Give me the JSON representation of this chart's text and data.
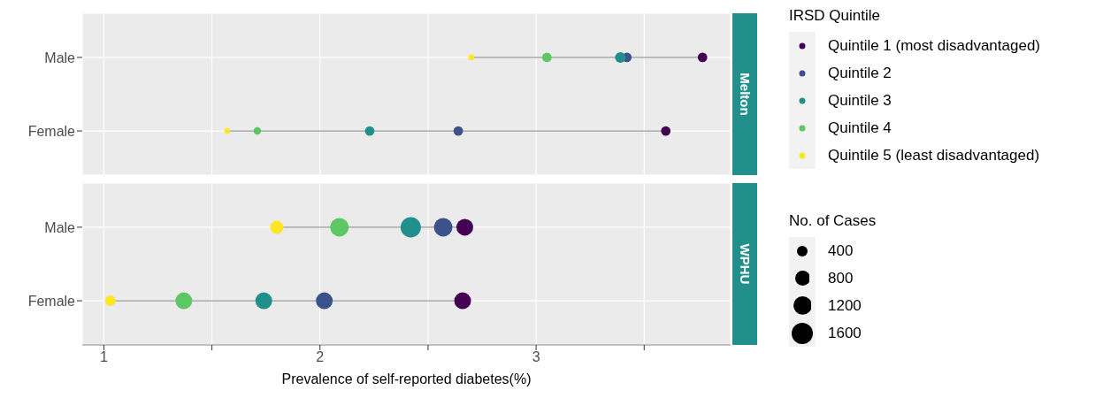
{
  "chart_data": [
    {
      "type": "bubble",
      "orientation": "horizontal",
      "title": "Melton",
      "legend_title": "IRSD Quintile",
      "legend": "right",
      "categories": [
        "Male",
        "Female"
      ],
      "xlim": [
        0.9,
        3.9
      ],
      "xticks": [
        1,
        {
          "value": 1.5,
          "label": null
        },
        2,
        {
          "value": 2.5,
          "label": null
        },
        3,
        {
          "value": 3.5,
          "label": null
        }
      ],
      "tick_labels": "y",
      "grid": true,
      "marker": "circle",
      "series": [
        {
          "name": "Quintile 1 (most disadvantaged)",
          "color": "#440154",
          "values": [
            3.77,
            3.6
          ],
          "sizes": [
            0.8,
            0.8
          ]
        },
        {
          "name": "Quintile 2",
          "color": "#3b528b",
          "values": [
            3.42,
            2.64
          ],
          "sizes": [
            0.8,
            0.8
          ]
        },
        {
          "name": "Quintile 3",
          "color": "#21908c",
          "values": [
            3.39,
            2.23
          ],
          "sizes": [
            1,
            0.8
          ]
        },
        {
          "name": "Quintile 4",
          "color": "#5dc863",
          "values": [
            3.05,
            1.71
          ],
          "sizes": [
            0.8,
            0.5
          ]
        },
        {
          "name": "Quintile 5 (least disadvantaged)",
          "color": "#fde725",
          "values": [
            2.7,
            1.57
          ],
          "sizes": [
            0.3,
            0.3
          ]
        }
      ]
    },
    {
      "type": "bubble",
      "orientation": "horizontal",
      "title": "WPHU",
      "xlabel": "Prevalence of self-reported diabetes(%)",
      "annotations": [
        "No. of Cases"
      ],
      "size_legend": [
        400,
        800,
        1200,
        1600
      ],
      "categories": [
        "Male",
        "Female"
      ],
      "xlim": [
        0.9,
        3.9
      ],
      "xticks": [
        1,
        {
          "value": 1.5,
          "label": null
        },
        2,
        {
          "value": 2.5,
          "label": null
        },
        3,
        {
          "value": 3.5,
          "label": null
        }
      ],
      "grid": true,
      "marker": "circle",
      "series": [
        {
          "color": "#440154",
          "values": [
            2.67,
            2.66
          ],
          "sizes": [
            1000,
            1000
          ]
        },
        {
          "color": "#3b528b",
          "values": [
            2.57,
            2.02
          ],
          "sizes": [
            1220,
            1000
          ]
        },
        {
          "color": "#21908c",
          "values": [
            2.42,
            1.74
          ],
          "sizes": [
            1470,
            1000
          ]
        },
        {
          "color": "#5dc863",
          "values": [
            2.09,
            1.37
          ],
          "sizes": [
            1220,
            1000
          ]
        },
        {
          "color": "#fde725",
          "values": [
            1.8,
            1.03
          ],
          "sizes": [
            620,
            400
          ]
        }
      ]
    }
  ]
}
